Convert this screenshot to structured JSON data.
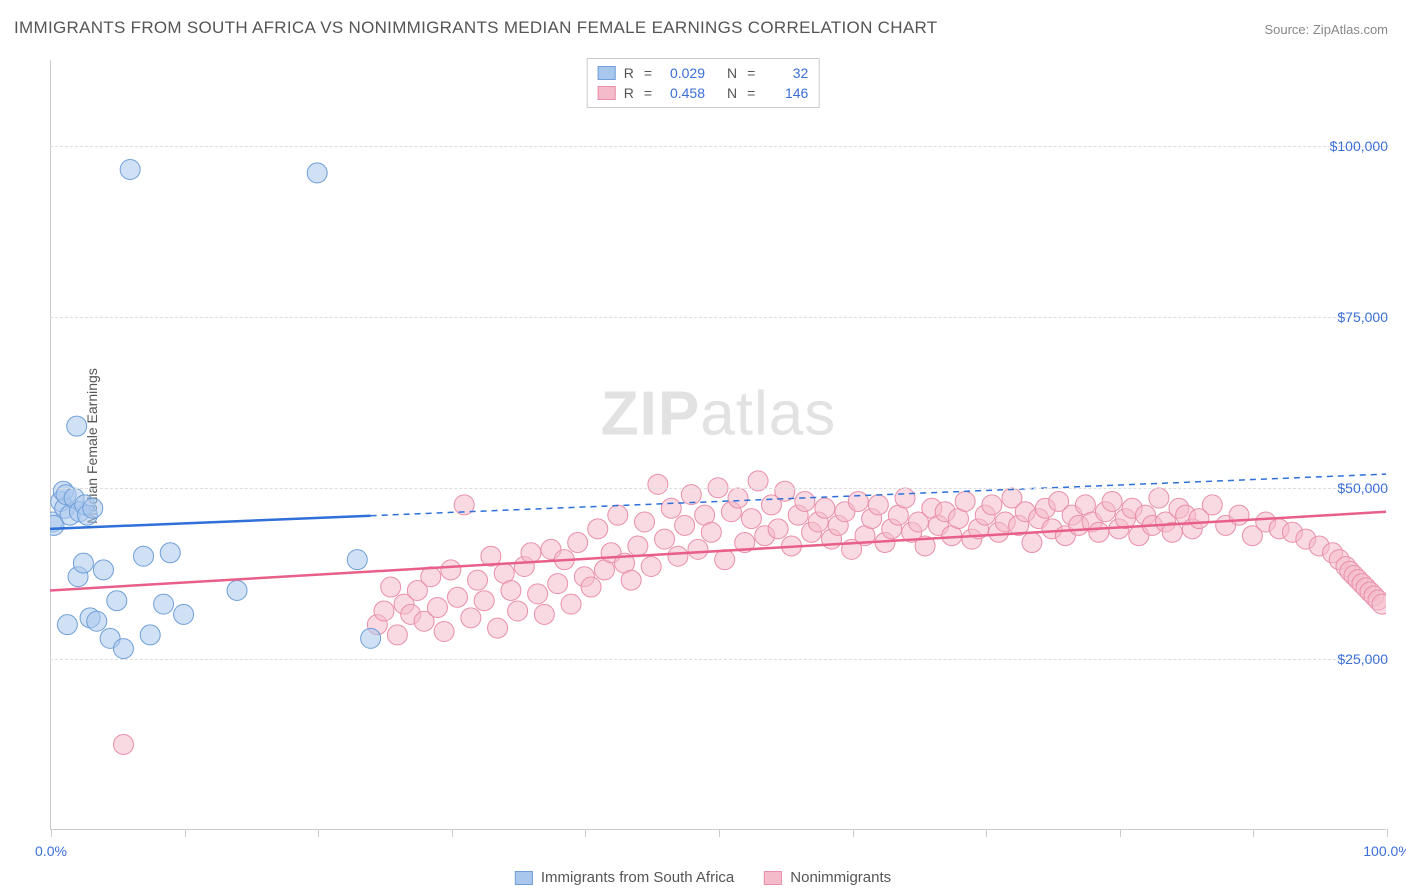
{
  "chart": {
    "type": "scatter",
    "title": "IMMIGRANTS FROM SOUTH AFRICA VS NONIMMIGRANTS MEDIAN FEMALE EARNINGS CORRELATION CHART",
    "source": "Source: ZipAtlas.com",
    "watermark_a": "ZIP",
    "watermark_b": "atlas",
    "y_axis_label": "Median Female Earnings",
    "background_color": "#ffffff",
    "grid_color": "#dddddd",
    "axis_color": "#cccccc",
    "tick_label_color": "#3b6fd8",
    "title_color": "#555555",
    "title_fontsize": 17,
    "label_fontsize": 14,
    "xlim": [
      0,
      100
    ],
    "ylim": [
      0,
      112500
    ],
    "x_ticks": [
      0,
      10,
      20,
      30,
      40,
      50,
      60,
      70,
      80,
      90,
      100
    ],
    "x_tick_labels": {
      "0": "0.0%",
      "100": "100.0%"
    },
    "y_ticks": [
      25000,
      50000,
      75000,
      100000
    ],
    "y_tick_labels": {
      "25000": "$25,000",
      "50000": "$50,000",
      "75000": "$75,000",
      "100000": "$100,000"
    },
    "marker_radius": 10,
    "marker_opacity": 0.55,
    "line_width_solid": 2.5,
    "line_width_dashed": 1.5,
    "dash_pattern": "6,5",
    "series": [
      {
        "name": "Immigrants from South Africa",
        "fill_color": "#a9c6ec",
        "stroke_color": "#6f9fd8",
        "trend_color": "#2e6fd8",
        "r_value": "0.029",
        "n_value": "32",
        "trend": {
          "x1": 0,
          "y1": 44000,
          "x2": 100,
          "y2": 52000,
          "solid_until_x": 24
        },
        "points": [
          [
            0.2,
            45000
          ],
          [
            0.3,
            44500
          ],
          [
            0.8,
            48000
          ],
          [
            1.0,
            49500
          ],
          [
            1.1,
            47000
          ],
          [
            1.2,
            49000
          ],
          [
            1.3,
            30000
          ],
          [
            1.5,
            46000
          ],
          [
            1.8,
            48500
          ],
          [
            2.0,
            59000
          ],
          [
            2.1,
            37000
          ],
          [
            2.2,
            46500
          ],
          [
            2.5,
            39000
          ],
          [
            2.6,
            47500
          ],
          [
            2.8,
            46000
          ],
          [
            3.0,
            31000
          ],
          [
            3.2,
            47000
          ],
          [
            3.5,
            30500
          ],
          [
            4.0,
            38000
          ],
          [
            4.5,
            28000
          ],
          [
            5.0,
            33500
          ],
          [
            5.5,
            26500
          ],
          [
            6.0,
            96500
          ],
          [
            7.0,
            40000
          ],
          [
            7.5,
            28500
          ],
          [
            8.5,
            33000
          ],
          [
            9.0,
            40500
          ],
          [
            10.0,
            31500
          ],
          [
            14.0,
            35000
          ],
          [
            20.0,
            96000
          ],
          [
            23.0,
            39500
          ],
          [
            24.0,
            28000
          ]
        ]
      },
      {
        "name": "Nonimmigrants",
        "fill_color": "#f4bccb",
        "stroke_color": "#e98fa9",
        "trend_color": "#e85f8a",
        "r_value": "0.458",
        "n_value": "146",
        "trend": {
          "x1": 0,
          "y1": 35000,
          "x2": 100,
          "y2": 46500,
          "solid_until_x": 100
        },
        "points": [
          [
            5.5,
            12500
          ],
          [
            24.5,
            30000
          ],
          [
            25,
            32000
          ],
          [
            25.5,
            35500
          ],
          [
            26,
            28500
          ],
          [
            26.5,
            33000
          ],
          [
            27,
            31500
          ],
          [
            27.5,
            35000
          ],
          [
            28,
            30500
          ],
          [
            28.5,
            37000
          ],
          [
            29,
            32500
          ],
          [
            29.5,
            29000
          ],
          [
            30,
            38000
          ],
          [
            30.5,
            34000
          ],
          [
            31,
            47500
          ],
          [
            31.5,
            31000
          ],
          [
            32,
            36500
          ],
          [
            32.5,
            33500
          ],
          [
            33,
            40000
          ],
          [
            33.5,
            29500
          ],
          [
            34,
            37500
          ],
          [
            34.5,
            35000
          ],
          [
            35,
            32000
          ],
          [
            35.5,
            38500
          ],
          [
            36,
            40500
          ],
          [
            36.5,
            34500
          ],
          [
            37,
            31500
          ],
          [
            37.5,
            41000
          ],
          [
            38,
            36000
          ],
          [
            38.5,
            39500
          ],
          [
            39,
            33000
          ],
          [
            39.5,
            42000
          ],
          [
            40,
            37000
          ],
          [
            40.5,
            35500
          ],
          [
            41,
            44000
          ],
          [
            41.5,
            38000
          ],
          [
            42,
            40500
          ],
          [
            42.5,
            46000
          ],
          [
            43,
            39000
          ],
          [
            43.5,
            36500
          ],
          [
            44,
            41500
          ],
          [
            44.5,
            45000
          ],
          [
            45,
            38500
          ],
          [
            45.5,
            50500
          ],
          [
            46,
            42500
          ],
          [
            46.5,
            47000
          ],
          [
            47,
            40000
          ],
          [
            47.5,
            44500
          ],
          [
            48,
            49000
          ],
          [
            48.5,
            41000
          ],
          [
            49,
            46000
          ],
          [
            49.5,
            43500
          ],
          [
            50,
            50000
          ],
          [
            50.5,
            39500
          ],
          [
            51,
            46500
          ],
          [
            51.5,
            48500
          ],
          [
            52,
            42000
          ],
          [
            52.5,
            45500
          ],
          [
            53,
            51000
          ],
          [
            53.5,
            43000
          ],
          [
            54,
            47500
          ],
          [
            54.5,
            44000
          ],
          [
            55,
            49500
          ],
          [
            55.5,
            41500
          ],
          [
            56,
            46000
          ],
          [
            56.5,
            48000
          ],
          [
            57,
            43500
          ],
          [
            57.5,
            45000
          ],
          [
            58,
            47000
          ],
          [
            58.5,
            42500
          ],
          [
            59,
            44500
          ],
          [
            59.5,
            46500
          ],
          [
            60,
            41000
          ],
          [
            60.5,
            48000
          ],
          [
            61,
            43000
          ],
          [
            61.5,
            45500
          ],
          [
            62,
            47500
          ],
          [
            62.5,
            42000
          ],
          [
            63,
            44000
          ],
          [
            63.5,
            46000
          ],
          [
            64,
            48500
          ],
          [
            64.5,
            43500
          ],
          [
            65,
            45000
          ],
          [
            65.5,
            41500
          ],
          [
            66,
            47000
          ],
          [
            66.5,
            44500
          ],
          [
            67,
            46500
          ],
          [
            67.5,
            43000
          ],
          [
            68,
            45500
          ],
          [
            68.5,
            48000
          ],
          [
            69,
            42500
          ],
          [
            69.5,
            44000
          ],
          [
            70,
            46000
          ],
          [
            70.5,
            47500
          ],
          [
            71,
            43500
          ],
          [
            71.5,
            45000
          ],
          [
            72,
            48500
          ],
          [
            72.5,
            44500
          ],
          [
            73,
            46500
          ],
          [
            73.5,
            42000
          ],
          [
            74,
            45500
          ],
          [
            74.5,
            47000
          ],
          [
            75,
            44000
          ],
          [
            75.5,
            48000
          ],
          [
            76,
            43000
          ],
          [
            76.5,
            46000
          ],
          [
            77,
            44500
          ],
          [
            77.5,
            47500
          ],
          [
            78,
            45000
          ],
          [
            78.5,
            43500
          ],
          [
            79,
            46500
          ],
          [
            79.5,
            48000
          ],
          [
            80,
            44000
          ],
          [
            80.5,
            45500
          ],
          [
            81,
            47000
          ],
          [
            81.5,
            43000
          ],
          [
            82,
            46000
          ],
          [
            82.5,
            44500
          ],
          [
            83,
            48500
          ],
          [
            83.5,
            45000
          ],
          [
            84,
            43500
          ],
          [
            84.5,
            47000
          ],
          [
            85,
            46000
          ],
          [
            85.5,
            44000
          ],
          [
            86,
            45500
          ],
          [
            87,
            47500
          ],
          [
            88,
            44500
          ],
          [
            89,
            46000
          ],
          [
            90,
            43000
          ],
          [
            91,
            45000
          ],
          [
            92,
            44000
          ],
          [
            93,
            43500
          ],
          [
            94,
            42500
          ],
          [
            95,
            41500
          ],
          [
            96,
            40500
          ],
          [
            96.5,
            39500
          ],
          [
            97,
            38500
          ],
          [
            97.3,
            37800
          ],
          [
            97.6,
            37200
          ],
          [
            97.9,
            36600
          ],
          [
            98.2,
            36000
          ],
          [
            98.5,
            35400
          ],
          [
            98.8,
            34800
          ],
          [
            99.1,
            34200
          ],
          [
            99.4,
            33600
          ],
          [
            99.7,
            33000
          ]
        ]
      }
    ],
    "legend_labels": {
      "r": "R",
      "n": "N",
      "eq": "="
    }
  }
}
